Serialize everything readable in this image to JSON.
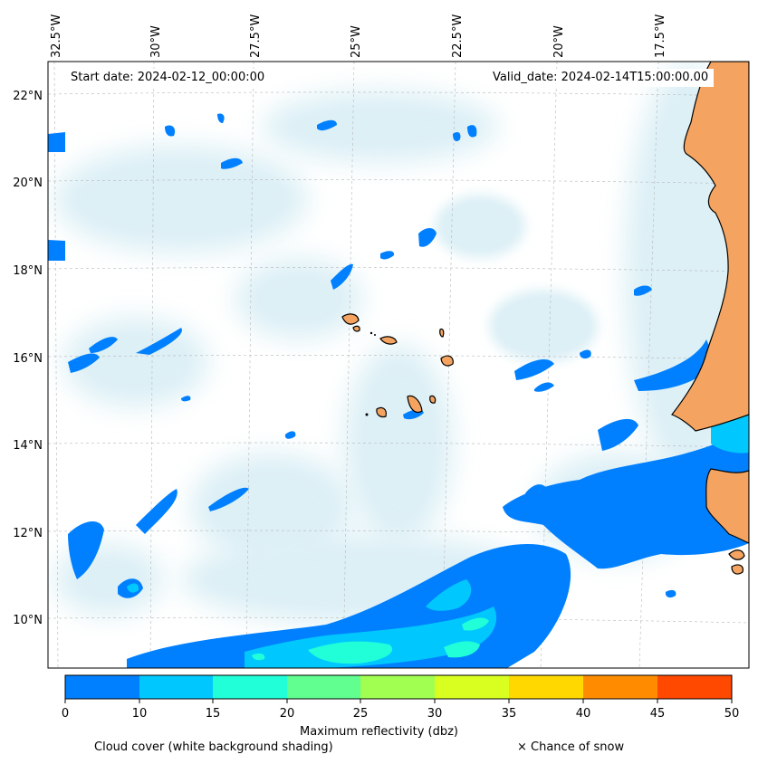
{
  "map": {
    "start_date_label": "Start date: 2024-02-12_00:00:00",
    "valid_date_label": "Valid_date: 2024-02-14T15:00:00.00",
    "longitude_labels": [
      "32.5°W",
      "30°W",
      "27.5°W",
      "25°W",
      "22.5°W",
      "20°W",
      "17.5°W"
    ],
    "latitude_labels": [
      "22°N",
      "20°N",
      "18°N",
      "16°N",
      "14°N",
      "12°N",
      "10°N"
    ],
    "land_color": "#f4a460",
    "ocean_color": "#ffffff",
    "cloud_color": "#bfe3ee"
  },
  "colorbar": {
    "title": "Maximum reflectivity (dbz)",
    "ticks": [
      "0",
      "10",
      "15",
      "20",
      "25",
      "30",
      "35",
      "40",
      "45",
      "50"
    ],
    "colors": [
      "#0080ff",
      "#00c8ff",
      "#20ffd8",
      "#60ff90",
      "#a0ff50",
      "#d8ff20",
      "#ffd800",
      "#ff8c00",
      "#ff4800"
    ]
  },
  "legend": {
    "cloud_cover": "Cloud cover (white background shading)",
    "snow": "× Chance of snow"
  }
}
